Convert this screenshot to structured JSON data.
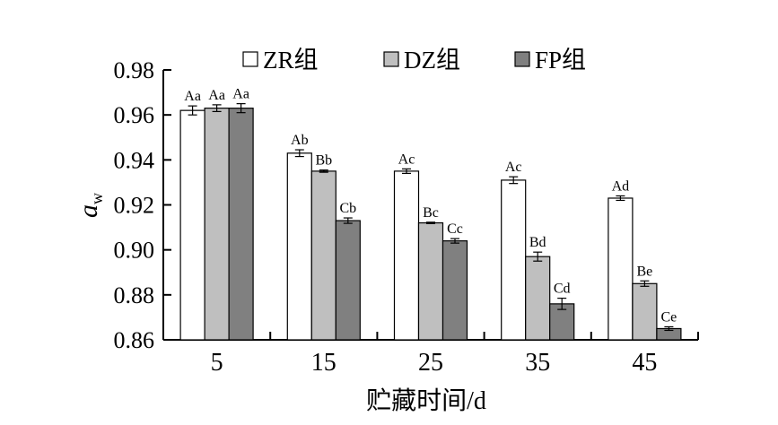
{
  "chart_data": {
    "type": "bar",
    "categories": [
      "5",
      "15",
      "25",
      "35",
      "45"
    ],
    "series": [
      {
        "name": "ZR组",
        "color": "#ffffff",
        "values": [
          0.962,
          0.943,
          0.935,
          0.931,
          0.923
        ],
        "errors": [
          0.002,
          0.0015,
          0.001,
          0.0015,
          0.001
        ],
        "labels": [
          "Aa",
          "Ab",
          "Ac",
          "Ac",
          "Ad"
        ]
      },
      {
        "name": "DZ组",
        "color": "#bfbfbf",
        "values": [
          0.963,
          0.935,
          0.912,
          0.897,
          0.885
        ],
        "errors": [
          0.0015,
          0.0005,
          0.0003,
          0.002,
          0.0012
        ],
        "labels": [
          "Aa",
          "Bb",
          "Bc",
          "Bd",
          "Be"
        ]
      },
      {
        "name": "FP组",
        "color": "#808080",
        "values": [
          0.963,
          0.913,
          0.904,
          0.876,
          0.865
        ],
        "errors": [
          0.002,
          0.0012,
          0.001,
          0.0025,
          0.0008
        ],
        "labels": [
          "Aa",
          "Cb",
          "Cc",
          "Cd",
          "Ce"
        ]
      }
    ],
    "xlabel": "贮藏时间/d",
    "ylabel_main": "a",
    "ylabel_sub": "w",
    "ylim": [
      0.86,
      0.98
    ],
    "yticks": [
      "0.86",
      "0.88",
      "0.90",
      "0.92",
      "0.94",
      "0.96",
      "0.98"
    ],
    "legend_position": "top",
    "grid": false
  }
}
